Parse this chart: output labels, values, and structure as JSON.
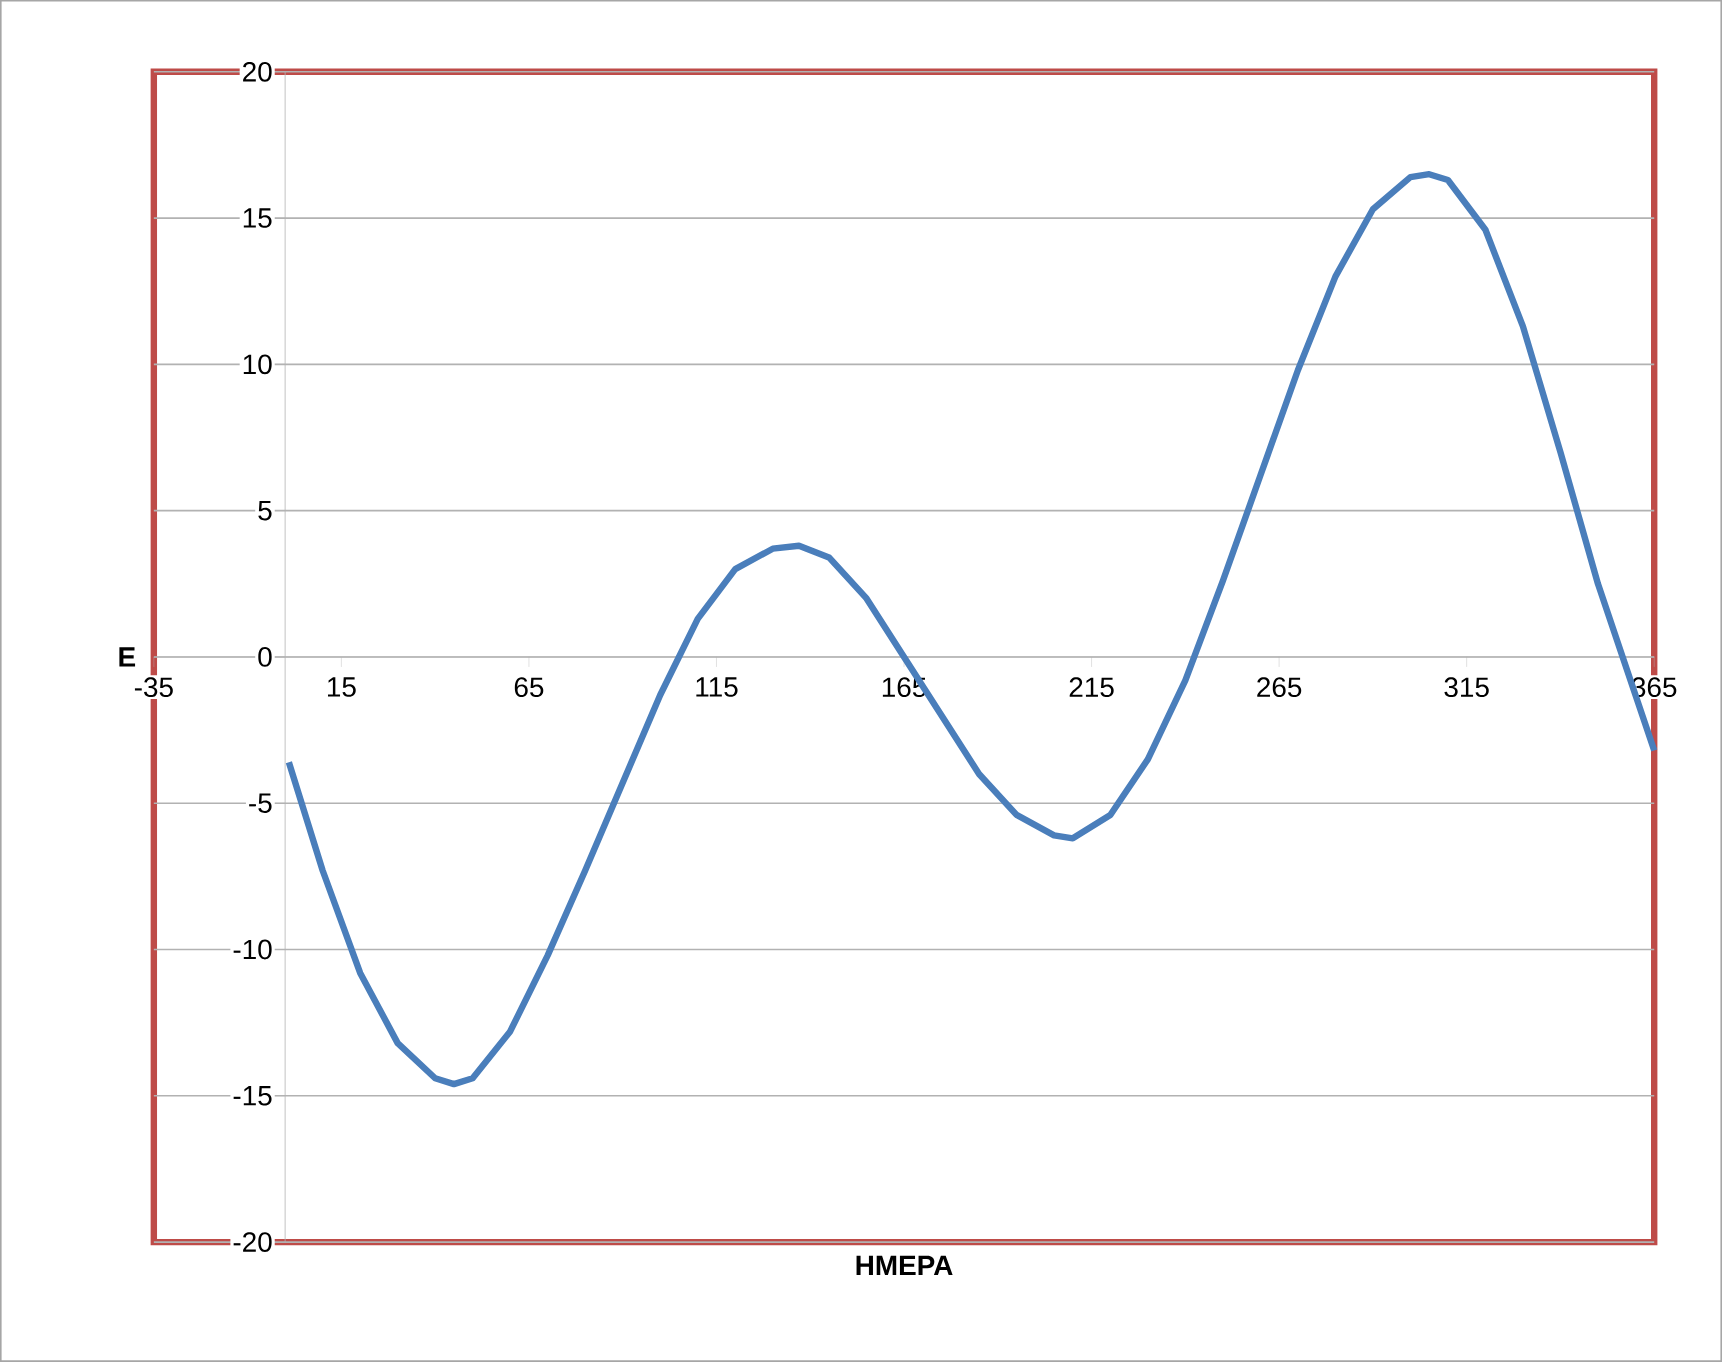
{
  "chart_data": {
    "type": "line",
    "xlabel": "HMEPA",
    "ylabel": "E",
    "x": [
      1,
      10,
      20,
      30,
      40,
      45,
      50,
      60,
      70,
      80,
      90,
      100,
      110,
      120,
      130,
      137,
      145,
      155,
      165,
      175,
      185,
      195,
      205,
      210,
      220,
      230,
      240,
      250,
      260,
      270,
      280,
      290,
      300,
      305,
      310,
      320,
      330,
      340,
      350,
      360,
      365
    ],
    "series": [
      {
        "color": "#4a7ebb",
        "values": [
          -3.6,
          -7.3,
          -10.8,
          -13.2,
          -14.4,
          -14.6,
          -14.4,
          -12.8,
          -10.2,
          -7.3,
          -4.3,
          -1.3,
          1.3,
          3.0,
          3.7,
          3.8,
          3.4,
          2.0,
          0.0,
          -2.0,
          -4.0,
          -5.4,
          -6.1,
          -6.2,
          -5.4,
          -3.5,
          -0.8,
          2.6,
          6.2,
          9.8,
          13.0,
          15.3,
          16.4,
          16.5,
          16.3,
          14.6,
          11.3,
          7.0,
          2.5,
          -1.3,
          -3.2
        ]
      }
    ],
    "xlim": [
      -35,
      365
    ],
    "ylim": [
      -20,
      20
    ],
    "xticks": [
      -35,
      15,
      65,
      115,
      165,
      215,
      265,
      315,
      365
    ],
    "yticks": [
      -20,
      -15,
      -10,
      -5,
      0,
      5,
      10,
      15,
      20
    ],
    "grid": "y",
    "marker": "none",
    "line_style": "solid"
  }
}
